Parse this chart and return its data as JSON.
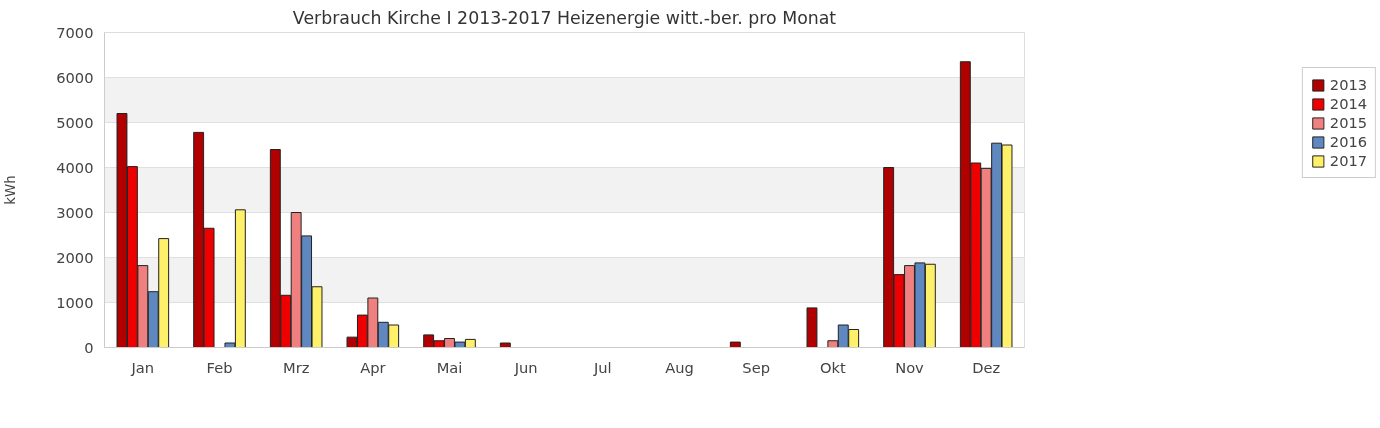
{
  "chart_data": {
    "type": "bar",
    "title": "Verbrauch Kirche I 2013-2017 Heizenergie witt.-ber. pro Monat",
    "ylabel": "kWh",
    "categories": [
      "Jan",
      "Feb",
      "Mrz",
      "Apr",
      "Mai",
      "Jun",
      "Jul",
      "Aug",
      "Sep",
      "Okt",
      "Nov",
      "Dez"
    ],
    "series": [
      {
        "name": "2013",
        "color": "#b00000",
        "values": [
          5200,
          4780,
          4400,
          230,
          280,
          100,
          0,
          0,
          120,
          880,
          4000,
          6350
        ]
      },
      {
        "name": "2014",
        "color": "#ee0000",
        "values": [
          4020,
          2650,
          1160,
          720,
          150,
          0,
          0,
          0,
          0,
          0,
          1620,
          4100
        ]
      },
      {
        "name": "2015",
        "color": "#f08080",
        "values": [
          1820,
          0,
          3000,
          1100,
          200,
          0,
          0,
          0,
          0,
          150,
          1820,
          3980
        ]
      },
      {
        "name": "2016",
        "color": "#6088c0",
        "values": [
          1240,
          100,
          2480,
          560,
          120,
          0,
          0,
          0,
          0,
          500,
          1880,
          4540
        ]
      },
      {
        "name": "2017",
        "color": "#fff06a",
        "values": [
          2420,
          3060,
          1350,
          500,
          180,
          0,
          0,
          0,
          0,
          400,
          1850,
          4500
        ]
      }
    ],
    "ylim": [
      0,
      7000
    ],
    "yticks": [
      0,
      1000,
      2000,
      3000,
      4000,
      5000,
      6000,
      7000
    ],
    "grid": "y",
    "legend": "top right"
  }
}
